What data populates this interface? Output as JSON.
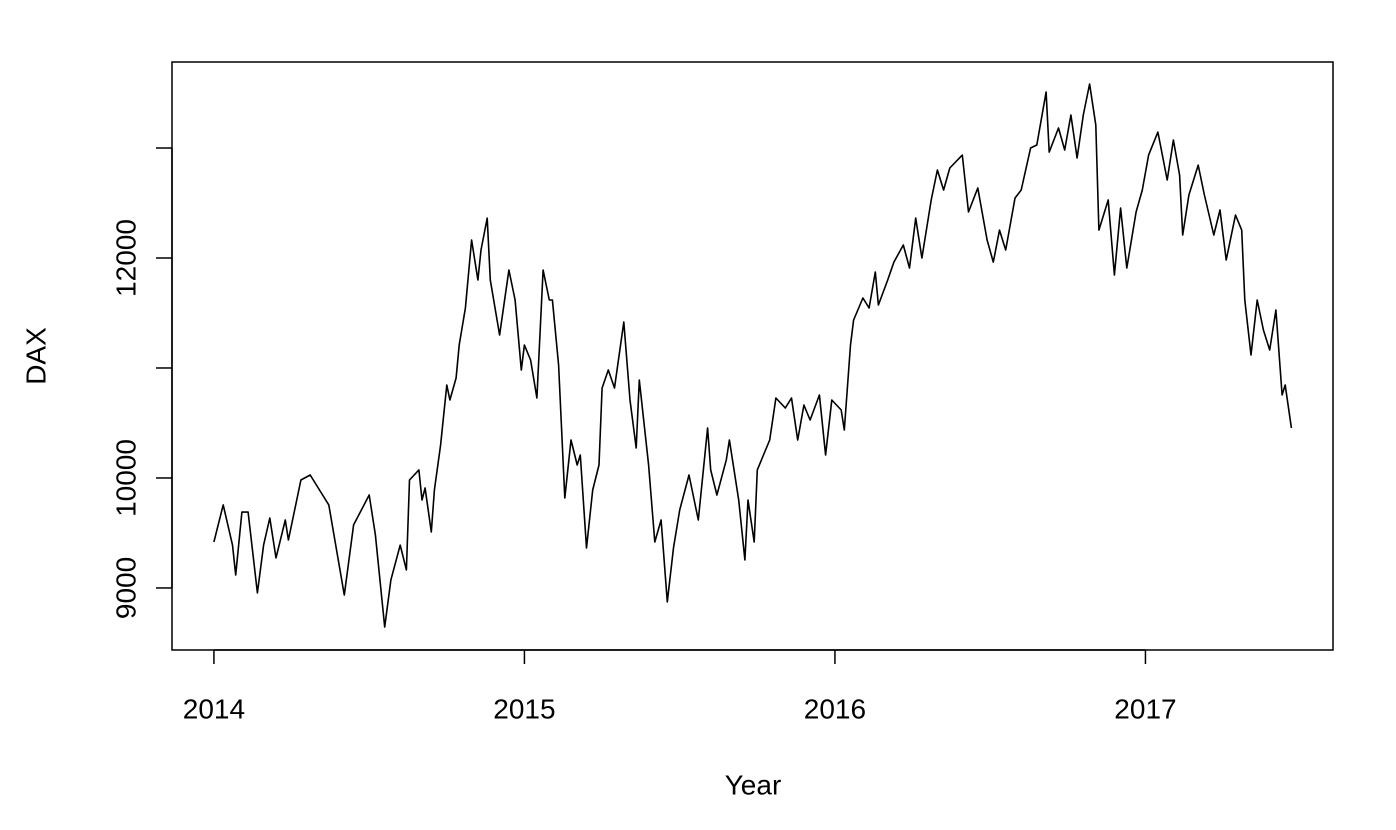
{
  "chart_data": {
    "type": "line",
    "x_label": "Year",
    "y_label": "DAX",
    "color": "#000000",
    "x": [
      2014.0,
      2014.03,
      2014.06,
      2014.07,
      2014.09,
      2014.11,
      2014.14,
      2014.16,
      2014.18,
      2014.2,
      2014.23,
      2014.24,
      2014.28,
      2014.31,
      2014.34,
      2014.37,
      2014.42,
      2014.45,
      2014.5,
      2014.52,
      2014.55,
      2014.57,
      2014.6,
      2014.62,
      2014.63,
      2014.66,
      2014.67,
      2014.68,
      2014.7,
      2014.71,
      2014.73,
      2014.75,
      2014.76,
      2014.78,
      2014.79,
      2014.81,
      2014.83,
      2014.85,
      2014.86,
      2014.88,
      2014.89,
      2014.92,
      2014.95,
      2014.97,
      2014.99,
      2015.0,
      2015.02,
      2015.04,
      2015.06,
      2015.08,
      2015.09,
      2015.11,
      2015.13,
      2015.15,
      2015.17,
      2015.18,
      2015.2,
      2015.22,
      2015.24,
      2015.25,
      2015.27,
      2015.29,
      2015.32,
      2015.34,
      2015.36,
      2015.37,
      2015.4,
      2015.42,
      2015.44,
      2015.46,
      2015.48,
      2015.5,
      2015.53,
      2015.54,
      2015.56,
      2015.59,
      2015.6,
      2015.62,
      2015.65,
      2015.66,
      2015.69,
      2015.71,
      2015.72,
      2015.74,
      2015.75,
      2015.79,
      2015.81,
      2015.84,
      2015.86,
      2015.88,
      2015.9,
      2015.92,
      2015.95,
      2015.97,
      2015.99,
      2016.02,
      2016.03,
      2016.05,
      2016.06,
      2016.09,
      2016.11,
      2016.13,
      2016.14,
      2016.17,
      2016.19,
      2016.22,
      2016.24,
      2016.26,
      2016.28,
      2016.31,
      2016.33,
      2016.35,
      2016.37,
      2016.41,
      2016.43,
      2016.46,
      2016.49,
      2016.51,
      2016.53,
      2016.55,
      2016.58,
      2016.6,
      2016.63,
      2016.65,
      2016.68,
      2016.69,
      2016.72,
      2016.74,
      2016.76,
      2016.78,
      2016.8,
      2016.82,
      2016.84,
      2016.85,
      2016.88,
      2016.9,
      2016.92,
      2016.94,
      2016.97,
      2016.99,
      2017.01,
      2017.04,
      2017.07,
      2017.09,
      2017.11,
      2017.12,
      2017.14,
      2017.17,
      2017.19,
      2017.22,
      2017.24,
      2017.26,
      2017.29,
      2017.31,
      2017.32,
      2017.34,
      2017.36,
      2017.38,
      2017.4,
      2017.42,
      2017.44,
      2017.45,
      2017.47
    ],
    "values": [
      9418,
      9755,
      9390,
      9118,
      9690,
      9690,
      8955,
      9390,
      9636,
      9273,
      9618,
      9436,
      9982,
      10027,
      9891,
      9755,
      8936,
      9573,
      9845,
      9482,
      8645,
      9073,
      9390,
      9164,
      9982,
      10073,
      9800,
      9909,
      9509,
      9891,
      10300,
      10845,
      10709,
      10909,
      11209,
      11545,
      12164,
      11800,
      12073,
      12363,
      11800,
      11300,
      11891,
      11618,
      10982,
      11209,
      11073,
      10727,
      11891,
      11618,
      11618,
      11027,
      9818,
      10345,
      10118,
      10209,
      9364,
      9891,
      10118,
      10818,
      10982,
      10818,
      11418,
      10709,
      10273,
      10891,
      10118,
      9418,
      9618,
      8873,
      9364,
      9709,
      10027,
      9891,
      9618,
      10454,
      10073,
      9845,
      10164,
      10345,
      9800,
      9255,
      9800,
      9418,
      10073,
      10345,
      10727,
      10636,
      10727,
      10345,
      10663,
      10527,
      10754,
      10209,
      10709,
      10618,
      10436,
      11209,
      11436,
      11636,
      11545,
      11873,
      11573,
      11800,
      11963,
      12118,
      11909,
      12363,
      12000,
      12527,
      12800,
      12618,
      12818,
      12936,
      12418,
      12636,
      12164,
      11963,
      12254,
      12073,
      12545,
      12618,
      13000,
      13027,
      13509,
      12963,
      13182,
      12982,
      13300,
      12909,
      13300,
      13582,
      13209,
      12254,
      12527,
      11845,
      12454,
      11909,
      12418,
      12618,
      12936,
      13145,
      12709,
      13073,
      12754,
      12209,
      12573,
      12845,
      12573,
      12209,
      12436,
      11982,
      12391,
      12254,
      11618,
      11118,
      11618,
      11345,
      11164,
      11527,
      10754,
      10845,
      10454
    ],
    "xlim": [
      2013.865,
      2017.604
    ],
    "ylim": [
      8436,
      13782
    ],
    "xticks": [
      2014,
      2015,
      2016,
      2017
    ],
    "yticks": [
      9000,
      10000,
      {
        "value": 11000,
        "label": null
      },
      12000,
      {
        "value": 13000,
        "label": null
      }
    ]
  }
}
